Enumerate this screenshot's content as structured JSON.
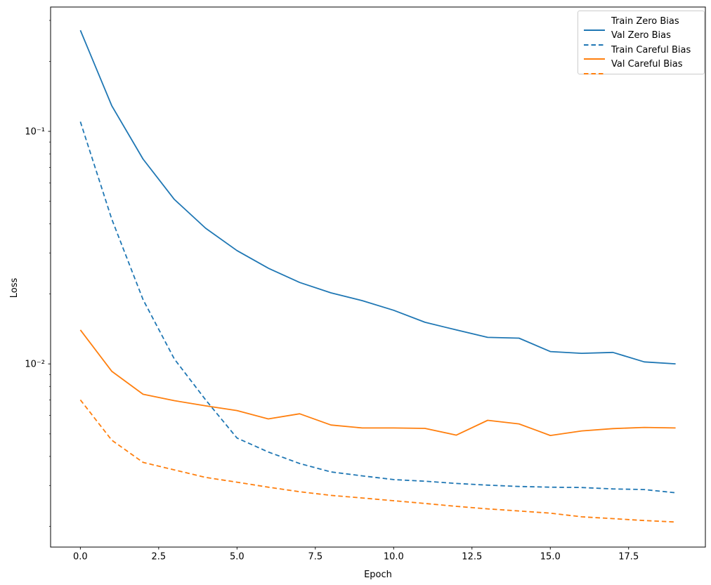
{
  "figure": {
    "background": "#ffffff"
  },
  "chart_data": {
    "type": "line",
    "title": "",
    "xlabel": "Epoch",
    "ylabel": "Loss",
    "x_scale": "linear",
    "y_scale": "log",
    "xlim": [
      -0.95,
      19.95
    ],
    "ylim": [
      0.00163,
      0.3425
    ],
    "grid": false,
    "legend_position": "upper right",
    "x_ticks": {
      "values": [
        0,
        2.5,
        5,
        7.5,
        10,
        12.5,
        15,
        17.5
      ],
      "labels": [
        "0.0",
        "2.5",
        "5.0",
        "7.5",
        "10.0",
        "12.5",
        "15.0",
        "17.5"
      ]
    },
    "y_major_ticks": {
      "values": [
        0.1,
        0.01
      ],
      "labels": [
        "10⁻¹",
        "10⁻²"
      ]
    },
    "y_minor_ticks": [
      0.3,
      0.2,
      0.09,
      0.08,
      0.07,
      0.06,
      0.05,
      0.04,
      0.03,
      0.02,
      0.009,
      0.008,
      0.007,
      0.006,
      0.005,
      0.004,
      0.003,
      0.002
    ],
    "x": [
      0,
      1,
      2,
      3,
      4,
      5,
      6,
      7,
      8,
      9,
      10,
      11,
      12,
      13,
      14,
      15,
      16,
      17,
      18,
      19
    ],
    "series": [
      {
        "name": "Train Zero Bias",
        "color": "#1f77b4",
        "style": "solid",
        "values": [
          0.272,
          0.129,
          0.076,
          0.051,
          0.0383,
          0.0307,
          0.0258,
          0.0224,
          0.0202,
          0.0187,
          0.017,
          0.0151,
          0.014,
          0.013,
          0.0129,
          0.0113,
          0.0111,
          0.0112,
          0.0102,
          0.01
        ]
      },
      {
        "name": "Val Zero Bias",
        "color": "#1f77b4",
        "style": "dashed",
        "values": [
          0.11,
          0.042,
          0.0189,
          0.0105,
          0.007,
          0.0048,
          0.00418,
          0.00373,
          0.00343,
          0.0033,
          0.00318,
          0.00313,
          0.00306,
          0.00301,
          0.00297,
          0.00295,
          0.00294,
          0.0029,
          0.00288,
          0.00279
        ]
      },
      {
        "name": "Train Careful Bias",
        "color": "#ff7f0e",
        "style": "solid",
        "values": [
          0.014,
          0.0093,
          0.0074,
          0.00695,
          0.0066,
          0.0063,
          0.0058,
          0.0061,
          0.00546,
          0.0053,
          0.0053,
          0.00528,
          0.00494,
          0.00572,
          0.00552,
          0.00492,
          0.00515,
          0.00527,
          0.00533,
          0.0053
        ]
      },
      {
        "name": "Val Careful Bias",
        "color": "#ff7f0e",
        "style": "dashed",
        "values": [
          0.007,
          0.0047,
          0.00377,
          0.0035,
          0.00325,
          0.0031,
          0.00295,
          0.00282,
          0.00272,
          0.00265,
          0.00258,
          0.00251,
          0.00244,
          0.00238,
          0.00233,
          0.00228,
          0.0022,
          0.00216,
          0.00212,
          0.00209
        ]
      }
    ]
  }
}
